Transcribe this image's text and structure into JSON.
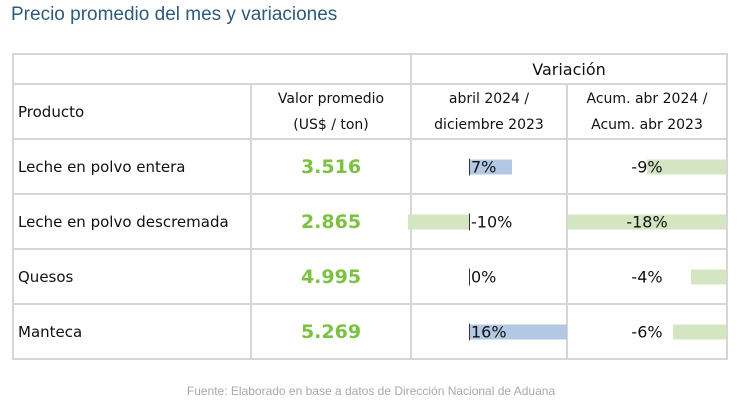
{
  "title": "Precio promedio del mes y variaciones",
  "table": {
    "group_header": "Variación",
    "headers": {
      "product": "Producto",
      "value_line1": "Valor promedio",
      "value_line2": "(US$ / ton)",
      "var1_line1": "abril 2024 /",
      "var1_line2": "diciembre 2023",
      "var2_line1": "Acum. abr 2024 /",
      "var2_line2": "Acum. abr 2023"
    },
    "rows": [
      {
        "product": "Leche en polvo entera",
        "value": "3.516",
        "var1": "7%",
        "var1_num": 7,
        "var2": "-9%",
        "var2_num": -9
      },
      {
        "product": "Leche en polvo descremada",
        "value": "2.865",
        "var1": "-10%",
        "var1_num": -10,
        "var2": "-18%",
        "var2_num": -18
      },
      {
        "product": "Quesos",
        "value": "4.995",
        "var1": "0%",
        "var1_num": 0,
        "var2": "-4%",
        "var2_num": -4
      },
      {
        "product": "Manteca",
        "value": "5.269",
        "var1": "16%",
        "var1_num": 16,
        "var2": "-6%",
        "var2_num": -6
      }
    ]
  },
  "colors": {
    "positive_bar": "#b3c8e3",
    "negative_bar": "#d4e5c2",
    "value_text": "#7cc242",
    "title_text": "#2f5a7d"
  },
  "source": "Fuente: Elaborado en base a datos de Dirección Nacional de Aduana"
}
